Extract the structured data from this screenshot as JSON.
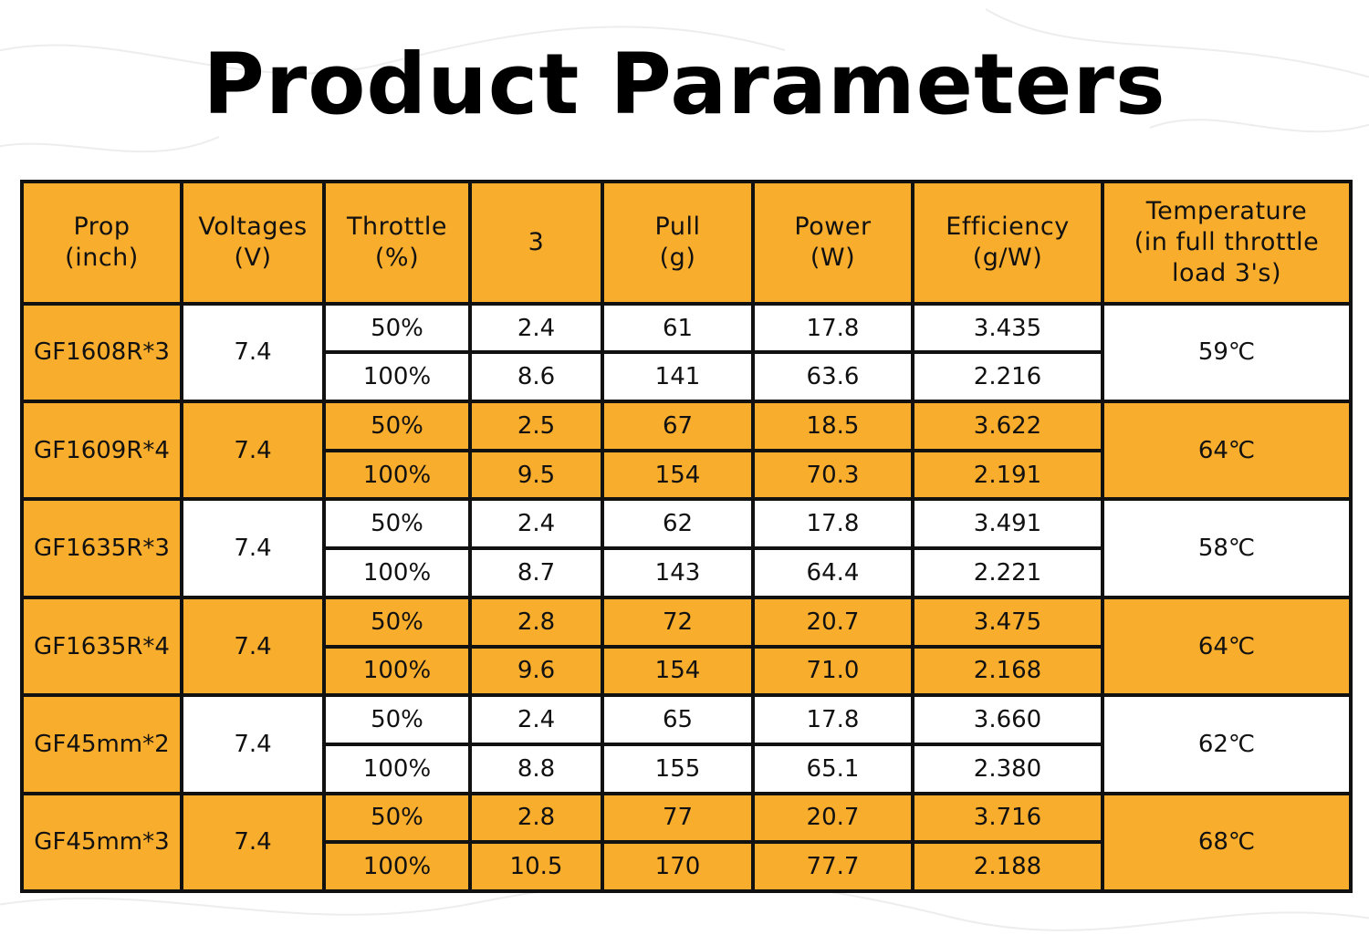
{
  "title": "Product Parameters",
  "colors": {
    "accent": "#f9ad2d",
    "border": "#111111",
    "background": "#ffffff"
  },
  "headers": [
    [
      "Prop",
      "(inch)"
    ],
    [
      "Voltages",
      "(V)"
    ],
    [
      "Throttle",
      "(%)"
    ],
    [
      "3"
    ],
    [
      "Pull",
      "(g)"
    ],
    [
      "Power",
      "(W)"
    ],
    [
      "Efficiency",
      "(g/W)"
    ],
    [
      "Temperature",
      "(in full throttle",
      "load 3's)"
    ]
  ],
  "rows": [
    {
      "prop": "GF1608R*3",
      "voltage": "7.4",
      "temperature": "59℃",
      "band": "white",
      "sub": [
        {
          "throttle": "50%",
          "current": "2.4",
          "pull": "61",
          "power": "17.8",
          "efficiency": "3.435"
        },
        {
          "throttle": "100%",
          "current": "8.6",
          "pull": "141",
          "power": "63.6",
          "efficiency": "2.216"
        }
      ]
    },
    {
      "prop": "GF1609R*4",
      "voltage": "7.4",
      "temperature": "64℃",
      "band": "orange",
      "sub": [
        {
          "throttle": "50%",
          "current": "2.5",
          "pull": "67",
          "power": "18.5",
          "efficiency": "3.622"
        },
        {
          "throttle": "100%",
          "current": "9.5",
          "pull": "154",
          "power": "70.3",
          "efficiency": "2.191"
        }
      ]
    },
    {
      "prop": "GF1635R*3",
      "voltage": "7.4",
      "temperature": "58℃",
      "band": "white",
      "sub": [
        {
          "throttle": "50%",
          "current": "2.4",
          "pull": "62",
          "power": "17.8",
          "efficiency": "3.491"
        },
        {
          "throttle": "100%",
          "current": "8.7",
          "pull": "143",
          "power": "64.4",
          "efficiency": "2.221"
        }
      ]
    },
    {
      "prop": "GF1635R*4",
      "voltage": "7.4",
      "temperature": "64℃",
      "band": "orange",
      "sub": [
        {
          "throttle": "50%",
          "current": "2.8",
          "pull": "72",
          "power": "20.7",
          "efficiency": "3.475"
        },
        {
          "throttle": "100%",
          "current": "9.6",
          "pull": "154",
          "power": "71.0",
          "efficiency": "2.168"
        }
      ]
    },
    {
      "prop": "GF45mm*2",
      "voltage": "7.4",
      "temperature": "62℃",
      "band": "white",
      "sub": [
        {
          "throttle": "50%",
          "current": "2.4",
          "pull": "65",
          "power": "17.8",
          "efficiency": "3.660"
        },
        {
          "throttle": "100%",
          "current": "8.8",
          "pull": "155",
          "power": "65.1",
          "efficiency": "2.380"
        }
      ]
    },
    {
      "prop": "GF45mm*3",
      "voltage": "7.4",
      "temperature": "68℃",
      "band": "orange",
      "sub": [
        {
          "throttle": "50%",
          "current": "2.8",
          "pull": "77",
          "power": "20.7",
          "efficiency": "3.716"
        },
        {
          "throttle": "100%",
          "current": "10.5",
          "pull": "170",
          "power": "77.7",
          "efficiency": "2.188"
        }
      ]
    }
  ]
}
